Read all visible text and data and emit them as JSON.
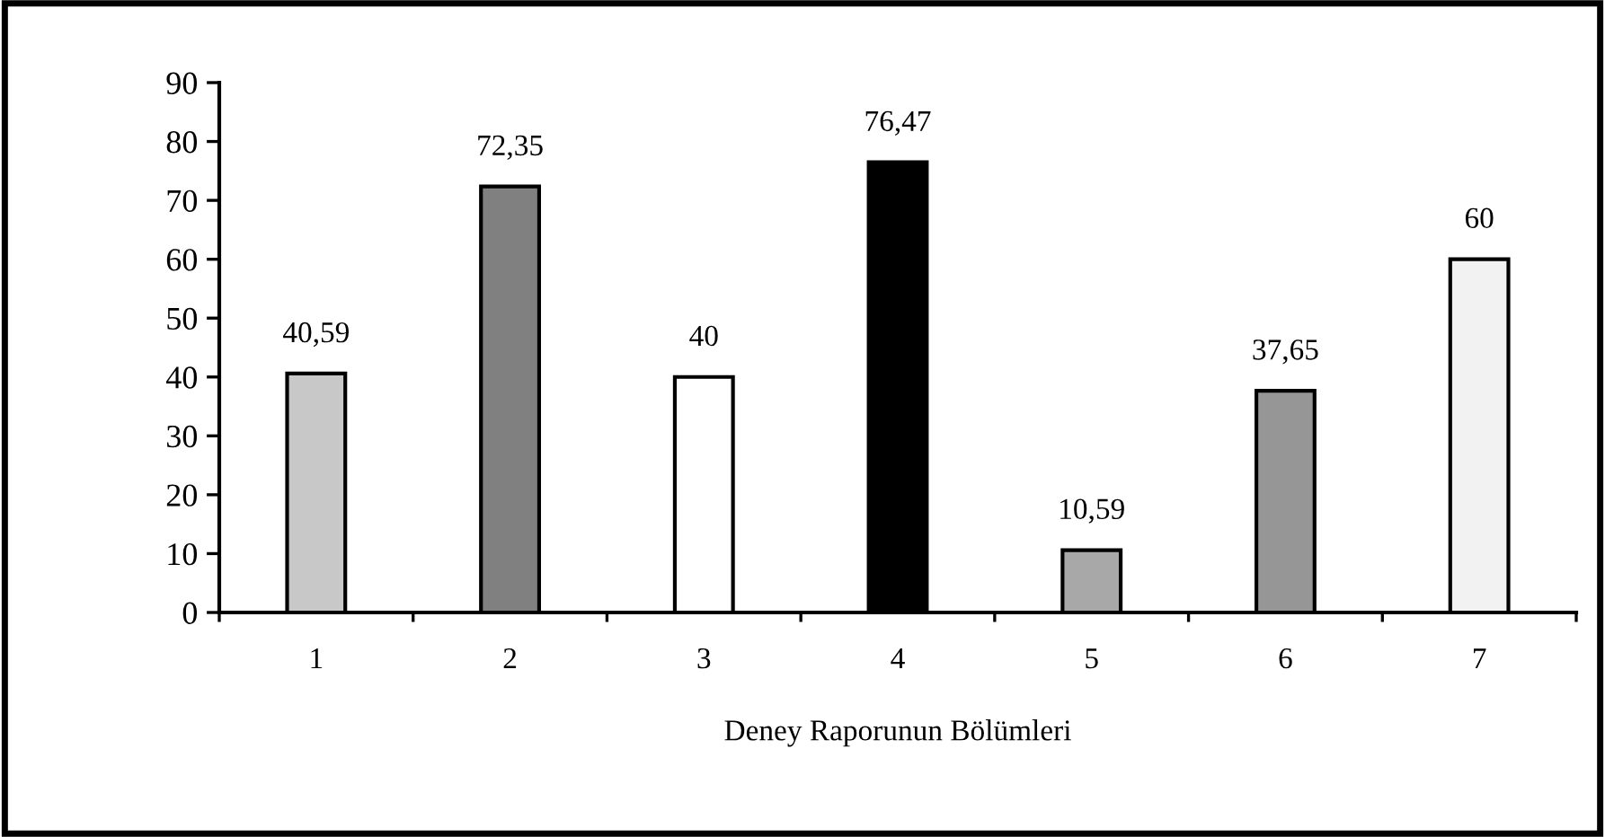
{
  "chart_data": {
    "type": "bar",
    "xlabel": "Deney Raporunun Bölümleri",
    "categories": [
      "1",
      "2",
      "3",
      "4",
      "5",
      "6",
      "7"
    ],
    "values": [
      40.59,
      72.35,
      40,
      76.47,
      10.59,
      37.65,
      60
    ],
    "value_labels": [
      "40,59",
      "72,35",
      "40",
      "76,47",
      "10,59",
      "37,65",
      "60"
    ],
    "colors": [
      "#c8c8c8",
      "#808080",
      "#ffffff",
      "#000000",
      "#a8a8a8",
      "#969696",
      "#f2f2f2"
    ],
    "ylim": [
      0,
      90
    ],
    "yticks": [
      0,
      10,
      20,
      30,
      40,
      50,
      60,
      70,
      80,
      90
    ],
    "grid": false,
    "legend": false
  }
}
